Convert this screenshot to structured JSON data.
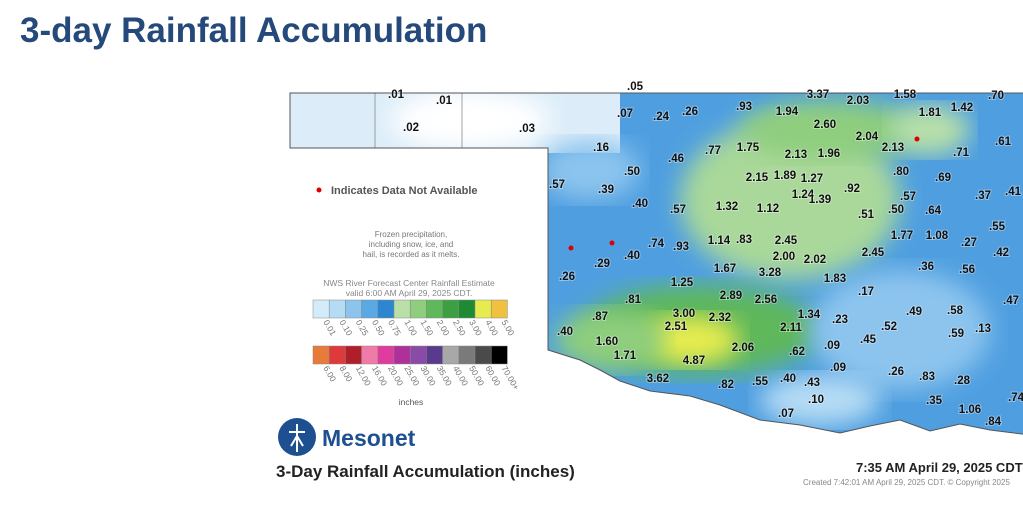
{
  "header": {
    "title": "3-day Rainfall Accumulation"
  },
  "notes": {
    "missing": "Indicates Data Not Available",
    "frozen": [
      "Frozen precipitation,",
      "including snow, ice, and",
      "hail, is recorded as it melts."
    ],
    "source": [
      "NWS River Forecast Center Rainfall Estimate",
      "valid 6:00 AM April 29, 2025 CDT."
    ]
  },
  "legend": {
    "unit": "inches",
    "rows": [
      [
        {
          "label": "0.01",
          "color": "#d4ecfa"
        },
        {
          "label": "0.10",
          "color": "#b6dcf5"
        },
        {
          "label": "0.25",
          "color": "#8cc4ee"
        },
        {
          "label": "0.50",
          "color": "#5aa8e4"
        },
        {
          "label": "0.75",
          "color": "#2e86d0"
        },
        {
          "label": "1.00",
          "color": "#b8e0a8"
        },
        {
          "label": "1.50",
          "color": "#8fce7e"
        },
        {
          "label": "2.00",
          "color": "#5fb85a"
        },
        {
          "label": "2.50",
          "color": "#3ca043"
        },
        {
          "label": "3.00",
          "color": "#1e8a33"
        },
        {
          "label": "4.00",
          "color": "#e6ec50"
        },
        {
          "label": "5.00",
          "color": "#f0c040"
        }
      ],
      [
        {
          "label": "6.00",
          "color": "#e87b3a"
        },
        {
          "label": "8.00",
          "color": "#e0393a"
        },
        {
          "label": "12.00",
          "color": "#b01e2a"
        },
        {
          "label": "16.00",
          "color": "#f07aa8"
        },
        {
          "label": "20.00",
          "color": "#e03c9e"
        },
        {
          "label": "25.00",
          "color": "#b0309a"
        },
        {
          "label": "30.00",
          "color": "#8a4aa8"
        },
        {
          "label": "35.00",
          "color": "#5a3a8c"
        },
        {
          "label": "40.00",
          "color": "#a8a8a8"
        },
        {
          "label": "50.00",
          "color": "#7a7a7a"
        },
        {
          "label": "60.00",
          "color": "#4a4a4a"
        },
        {
          "label": "70.00+",
          "color": "#000000"
        }
      ]
    ]
  },
  "footer": {
    "brand": "Mesonet",
    "caption": "3-Day Rainfall Accumulation (inches)",
    "time": "7:35 AM April 29, 2025 CDT",
    "created": "Created 7:42:01 AM April 29, 2025 CDT. © Copyright 2025"
  },
  "stations": [
    ".05",
    ".01",
    ".01",
    ".02",
    ".03",
    ".07",
    ".24",
    ".26",
    ".93",
    "3.37",
    "1.94",
    "2.03",
    "1.58",
    ".70",
    "1.81",
    "1.42",
    "2.60",
    "2.04",
    "2.13",
    ".61",
    ".16",
    ".46",
    ".77",
    "1.75",
    "2.13",
    "1.96",
    ".71",
    ".57",
    ".50",
    "2.15",
    "1.89",
    "1.27",
    ".80",
    ".69",
    ".39",
    "1.24",
    ".92",
    ".57",
    ".37",
    ".41",
    ".40",
    ".57",
    "1.32",
    "1.12",
    "1.39",
    ".51",
    ".50",
    ".64",
    ".55",
    ".74",
    ".93",
    "1.14",
    ".83",
    "2.45",
    "1.77",
    "1.08",
    ".27",
    ".29",
    ".40",
    "2.00",
    "2.02",
    "2.45",
    ".42",
    ".26",
    "1.25",
    "1.67",
    "3.28",
    "1.83",
    ".36",
    ".56",
    ".81",
    "2.89",
    "2.56",
    ".17",
    ".47",
    ".87",
    "3.00",
    "2.32",
    "1.34",
    ".23",
    ".49",
    ".58",
    ".40",
    "2.51",
    "2.11",
    ".52",
    ".59",
    ".13",
    "1.60",
    "2.06",
    ".62",
    ".09",
    ".45",
    "1.71",
    "4.87",
    ".09",
    ".26",
    ".83",
    ".28",
    "3.62",
    ".82",
    ".55",
    ".40",
    ".43",
    ".35",
    ".74",
    ".10",
    ".07",
    "1.06",
    ".84"
  ]
}
